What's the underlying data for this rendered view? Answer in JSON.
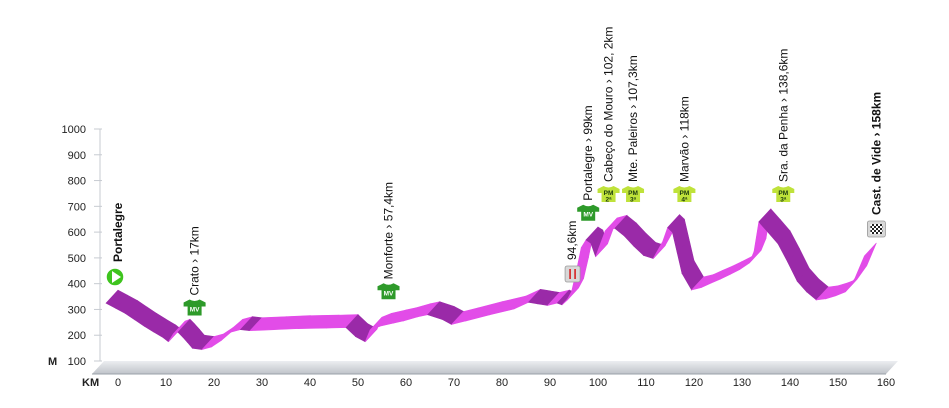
{
  "chart_data": {
    "type": "area",
    "xlabel": "KM",
    "ylabel": "M",
    "xlim": [
      0,
      160
    ],
    "ylim": [
      100,
      1000
    ],
    "xticks": [
      "0",
      "10",
      "20",
      "30",
      "40",
      "50",
      "60",
      "70",
      "80",
      "90",
      "100",
      "110",
      "120",
      "130",
      "140",
      "150",
      "160"
    ],
    "yticks": [
      "100",
      "200",
      "300",
      "400",
      "500",
      "600",
      "700",
      "800",
      "900",
      "1000"
    ],
    "profile": {
      "x": [
        0,
        2,
        4,
        6,
        8,
        10,
        12,
        13,
        14,
        15,
        16,
        17,
        18,
        20,
        22,
        24,
        26,
        28,
        30,
        35,
        40,
        46,
        50,
        52,
        54,
        55,
        57,
        60,
        62,
        65,
        67,
        70,
        72,
        75,
        80,
        85,
        88,
        90,
        92,
        94,
        95,
        96,
        97,
        98,
        99,
        100,
        101,
        102,
        104,
        106,
        108,
        110,
        112,
        114,
        116,
        117,
        118,
        119,
        120,
        122,
        124,
        126,
        128,
        130,
        132,
        134,
        135,
        136,
        138,
        140,
        142,
        144,
        146,
        148,
        150,
        152,
        154,
        156,
        158
      ],
      "y": [
        375,
        355,
        335,
        310,
        285,
        262,
        240,
        225,
        255,
        262,
        243,
        222,
        200,
        195,
        205,
        230,
        262,
        272,
        268,
        272,
        276,
        278,
        280,
        245,
        225,
        270,
        285,
        298,
        306,
        322,
        330,
        312,
        292,
        306,
        330,
        352,
        378,
        372,
        366,
        375,
        368,
        385,
        420,
        500,
        590,
        620,
        608,
        555,
        655,
        665,
        635,
        595,
        560,
        548,
        615,
        668,
        650,
        570,
        490,
        426,
        435,
        452,
        468,
        486,
        505,
        530,
        575,
        690,
        648,
        605,
        535,
        460,
        418,
        387,
        392,
        403,
        418,
        470,
        558
      ]
    }
  },
  "waypoints": [
    {
      "id": "portalegre-start",
      "text": "Portalegre",
      "bold": true,
      "marker": "start",
      "km": 0,
      "elev": 380
    },
    {
      "id": "crato",
      "text": "Crato › 17km",
      "bold": false,
      "marker": "mv",
      "km": 17,
      "elev": 222
    },
    {
      "id": "monforte",
      "text": "Monforte › 57,4km",
      "bold": false,
      "marker": "mv",
      "km": 57.4,
      "elev": 285
    },
    {
      "id": "feed-zone",
      "text": "94,6km",
      "bold": false,
      "marker": "feed",
      "km": 94.6,
      "elev": 378
    },
    {
      "id": "portalegre-99",
      "text": "Portalegre › 99km",
      "bold": false,
      "marker": "mv",
      "km": 99,
      "elev": 590
    },
    {
      "id": "cabeco-do-mouro",
      "text": "Cabeço do Mouro › 102, 2km",
      "bold": false,
      "marker": "pm",
      "cat": "2ª",
      "km": 102.2,
      "elev": 640
    },
    {
      "id": "mte-paleiros",
      "text": "Mte. Paleiros › 107,3km",
      "bold": false,
      "marker": "pm",
      "cat": "3ª",
      "km": 107.3,
      "elev": 650
    },
    {
      "id": "marvao",
      "text": "Marvão › 118km",
      "bold": false,
      "marker": "pm",
      "cat": "4ª",
      "km": 118,
      "elev": 650
    },
    {
      "id": "sra-da-penha",
      "text": "Sra. da Penha › 138,6km",
      "bold": false,
      "marker": "pm",
      "cat": "3ª",
      "km": 138.6,
      "elev": 680
    },
    {
      "id": "cast-de-vide",
      "text": "Cast. de Vide › 158km",
      "bold": true,
      "marker": "finish",
      "km": 158,
      "elev": 558
    }
  ],
  "jersey": {
    "mv": "MV",
    "pm": "PM"
  },
  "colors": {
    "profile_top": "#e24ce8",
    "profile_side": "#9a2aa8",
    "mv_jersey": "#2e9a2a",
    "pm_jersey": "#bfe23a",
    "start": "#3ec41e",
    "axis": "#9aa0a8"
  }
}
